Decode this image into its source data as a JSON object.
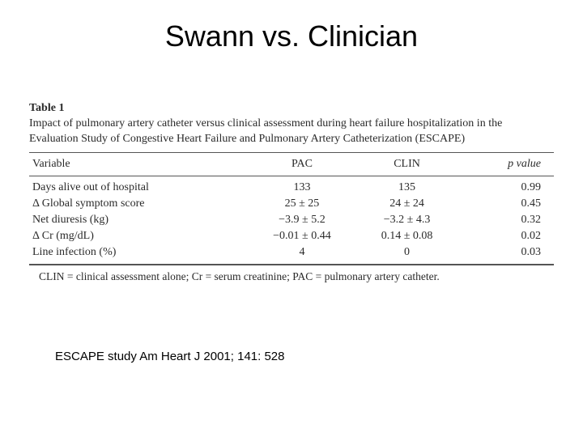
{
  "title": "Swann vs. Clinician",
  "table": {
    "label": "Table 1",
    "caption": "Impact of pulmonary artery catheter versus clinical assessment during heart failure hospitalization in the Evaluation Study of Congestive Heart Failure and Pulmonary Artery Catheterization (ESCAPE)",
    "columns": [
      "Variable",
      "PAC",
      "CLIN",
      "p value"
    ],
    "rows": [
      [
        "Days alive out of hospital",
        "133",
        "135",
        "0.99"
      ],
      [
        "Δ Global symptom score",
        "25 ± 25",
        "24 ± 24",
        "0.45"
      ],
      [
        "Net diuresis (kg)",
        "−3.9 ± 5.2",
        "−3.2 ± 4.3",
        "0.32"
      ],
      [
        "Δ Cr (mg/dL)",
        "−0.01 ± 0.44",
        "0.14 ± 0.08",
        "0.02"
      ],
      [
        "Line infection (%)",
        "4",
        "0",
        "0.03"
      ]
    ],
    "footnote": "CLIN = clinical assessment alone; Cr = serum creatinine; PAC = pulmonary artery catheter."
  },
  "citation": "ESCAPE study Am Heart J 2001; 141: 528",
  "style": {
    "background_color": "#ffffff",
    "title_fontsize": 36,
    "table_fontsize": 14,
    "citation_fontsize": 15,
    "border_color": "#555555",
    "text_color": "#2a2a2a"
  }
}
